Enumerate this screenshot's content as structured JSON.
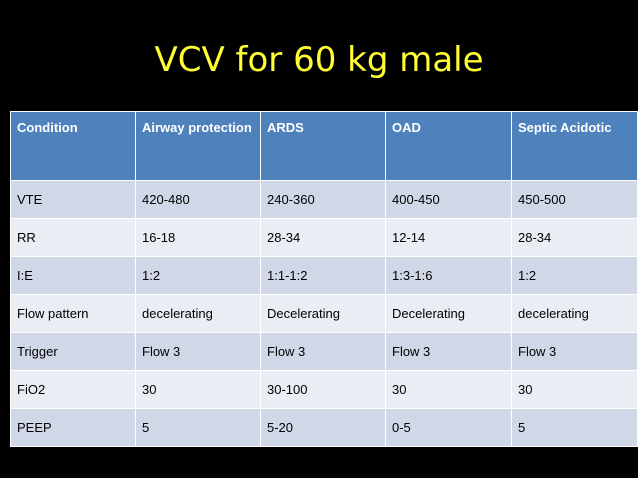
{
  "title": "VCV for 60 kg male",
  "table": {
    "headers": [
      "Condition",
      "Airway protection",
      "ARDS",
      "OAD",
      "Septic Acidotic"
    ],
    "rows": [
      [
        "VTE",
        "420-480",
        "240-360",
        "400-450",
        "450-500"
      ],
      [
        "RR",
        "16-18",
        "28-34",
        "12-14",
        "28-34"
      ],
      [
        "I:E",
        "1:2",
        "1:1-1:2",
        "1:3-1:6",
        "1:2"
      ],
      [
        "Flow pattern",
        "decelerating",
        "Decelerating",
        "Decelerating",
        "decelerating"
      ],
      [
        "Trigger",
        "Flow 3",
        "Flow 3",
        "Flow 3",
        "Flow 3"
      ],
      [
        "FiO2",
        "30",
        "30-100",
        "30",
        "30"
      ],
      [
        "PEEP",
        "5",
        "5-20",
        "0-5",
        "5"
      ]
    ]
  },
  "colors": {
    "background": "#000000",
    "title": "#ffff33",
    "header": "#4f81bd",
    "row_odd": "#d0d8e8",
    "row_even": "#e9edf4"
  }
}
